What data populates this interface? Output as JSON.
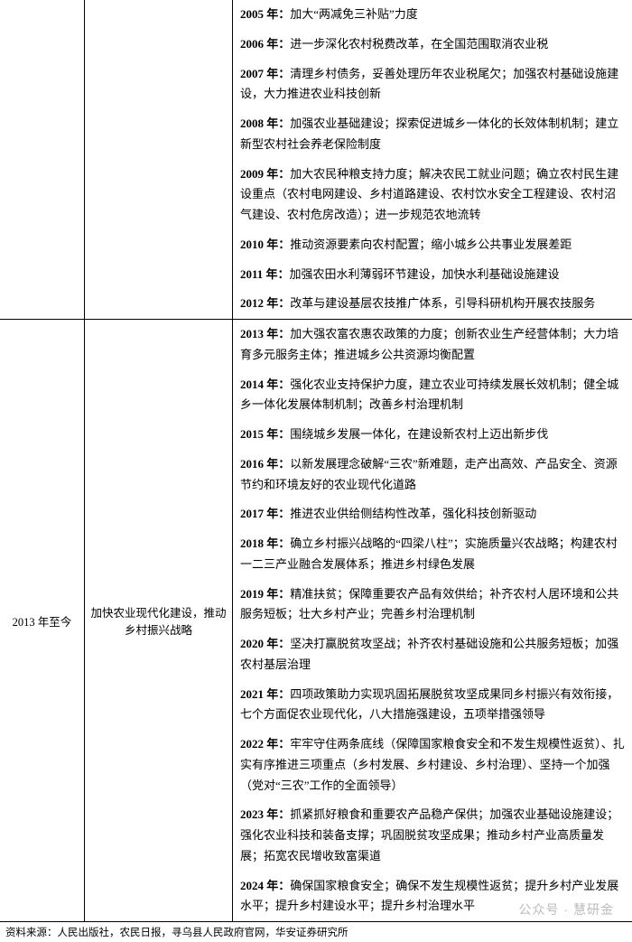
{
  "sections": [
    {
      "period": "",
      "theme": "",
      "rows": [
        {
          "year": "2005 年：",
          "text": "加大“两减免三补贴”力度"
        },
        {
          "year": "2006 年：",
          "text": "进一步深化农村税费改革，在全国范围取消农业税"
        },
        {
          "year": "2007 年：",
          "text": "清理乡村债务，妥善处理历年农业税尾欠；加强农村基础设施建设，大力推进农业科技创新"
        },
        {
          "year": "2008 年：",
          "text": "加强农业基础建设；探索促进城乡一体化的长效体制机制；建立新型农村社会养老保险制度"
        },
        {
          "year": "2009 年：",
          "text": "加大农民种粮支持力度；解决农民工就业问题；确立农村民生建设重点（农村电网建设、乡村道路建设、农村饮水安全工程建设、农村沼气建设、农村危房改造）；进一步规范农地流转"
        },
        {
          "year": "2010 年：",
          "text": "推动资源要素向农村配置；缩小城乡公共事业发展差距"
        },
        {
          "year": "2011 年：",
          "text": "加强农田水利薄弱环节建设，加快水利基础设施建设"
        },
        {
          "year": "2012 年：",
          "text": "改革与建设基层农技推广体系，引导科研机构开展农技服务"
        }
      ]
    },
    {
      "period": "2013 年至今",
      "theme": "加快农业现代化建设，推动乡村振兴战略",
      "rows": [
        {
          "year": "2013 年：",
          "text": "加大强农富农惠农政策的力度；创新农业生产经营体制；大力培育多元服务主体；推进城乡公共资源均衡配置"
        },
        {
          "year": "2014 年：",
          "text": "强化农业支持保护力度，建立农业可持续发展长效机制；健全城乡一体化发展体制机制；改善乡村治理机制"
        },
        {
          "year": "2015 年：",
          "text": "围绕城乡发展一体化，在建设新农村上迈出新步伐"
        },
        {
          "year": "2016 年：",
          "text": "以新发展理念破解“三农”新难题，走产出高效、产品安全、资源节约和环境友好的农业现代化道路"
        },
        {
          "year": "2017 年：",
          "text": "推进农业供给侧结构性改革，强化科技创新驱动"
        },
        {
          "year": "2018 年：",
          "text": "确立乡村振兴战略的“四梁八柱”；实施质量兴农战略；构建农村一二三产业融合发展体系；推进乡村绿色发展"
        },
        {
          "year": "2019 年：",
          "text": "精准扶贫；保障重要农产品有效供给；补齐农村人居环境和公共服务短板；壮大乡村产业；完善乡村治理机制"
        },
        {
          "year": "2020 年：",
          "text": "坚决打赢脱贫攻坚战；补齐农村基础设施和公共服务短板；加强农村基层治理"
        },
        {
          "year": "2021 年：",
          "text": "四项政策助力实现巩固拓展脱贫攻坚成果同乡村振兴有效衔接，七个方面促农业现代化，八大措施强建设，五项举措强领导"
        },
        {
          "year": "2022 年：",
          "text": "牢牢守住两条底线（保障国家粮食安全和不发生规模性返贫）、扎实有序推进三项重点（乡村发展、乡村建设、乡村治理）、坚持一个加强（党对“三农”工作的全面领导）"
        },
        {
          "year": "2023 年：",
          "text": "抓紧抓好粮食和重要农产品稳产保供；加强农业基础设施建设；强化农业科技和装备支撑；巩固脱贫攻坚成果；推动乡村产业高质量发展；拓宽农民增收致富渠道"
        },
        {
          "year": "2024 年：",
          "text": "确保国家粮食安全；确保不发生规模性返贫；提升乡村产业发展水平；提升乡村建设水平；提升乡村治理水平"
        }
      ]
    }
  ],
  "source_label": "资料来源：人民出版社，农民日报，寻乌县人民政府官网，华安证券研究所",
  "watermark": "公众号 · 慧研金",
  "colors": {
    "border": "#000000",
    "text": "#000000",
    "background": "#ffffff",
    "watermark": "#bbbbbb"
  },
  "font_sizes": {
    "body": 13,
    "side_cols": 12.5,
    "source": 11.5
  }
}
